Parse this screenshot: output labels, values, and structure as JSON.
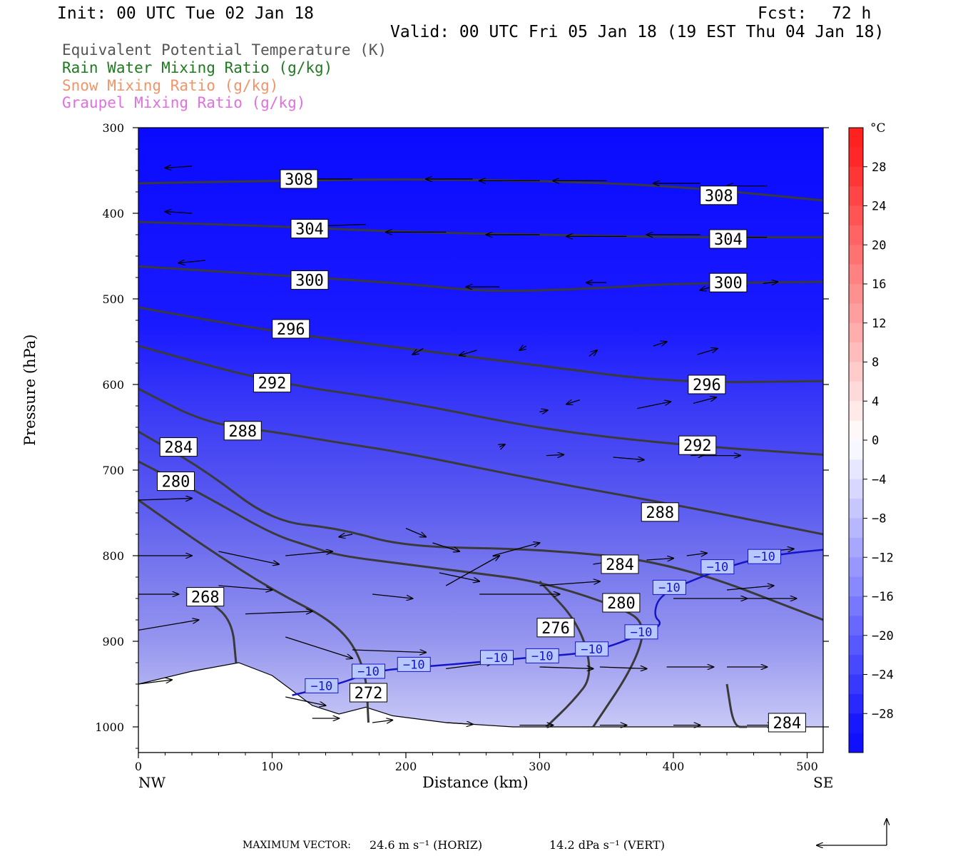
{
  "header": {
    "init": "Init: 00 UTC Tue 02 Jan 18",
    "fcst_label": "Fcst:",
    "fcst_value": "72 h",
    "valid": "Valid: 00 UTC Fri 05 Jan 18 (19 EST Thu 04 Jan 18)"
  },
  "fields": [
    {
      "label": "Equivalent Potential Temperature (K)",
      "color": "#555555"
    },
    {
      "label": "Rain Water Mixing Ratio (g/kg)",
      "color": "#1f7a1f"
    },
    {
      "label": "Snow Mixing Ratio (g/kg)",
      "color": "#f0946a"
    },
    {
      "label": "Graupel Mixing Ratio (g/kg)",
      "color": "#e070e0"
    }
  ],
  "footer": {
    "max_vector_label": "MAXIMUM VECTOR:",
    "horiz": "24.6 m s⁻¹ (HORIZ)",
    "vert": "14.2 dPa s⁻¹ (VERT)"
  },
  "chart_data": {
    "type": "cross-section contour",
    "xlabel": "Distance (km)",
    "ylabel": "Pressure (hPa)",
    "x_ticks": [
      0,
      100,
      200,
      300,
      400,
      500
    ],
    "y_ticks": [
      300,
      400,
      500,
      600,
      700,
      800,
      900,
      1000
    ],
    "xlim": [
      0,
      512
    ],
    "ylim": [
      1030,
      300
    ],
    "x_end_labels": {
      "left": "NW",
      "right": "SE"
    },
    "colorbar": {
      "unit": "°C",
      "tick_labels": [
        "28",
        "24",
        "20",
        "16",
        "12",
        "8",
        "4",
        "0",
        "−4",
        "−8",
        "−12",
        "−16",
        "−20",
        "−24",
        "−28"
      ],
      "tick_values": [
        28,
        24,
        20,
        16,
        12,
        8,
        4,
        0,
        -4,
        -8,
        -12,
        -16,
        -20,
        -24,
        -28
      ],
      "levels": [
        32,
        30,
        28,
        26,
        24,
        22,
        20,
        18,
        16,
        14,
        12,
        10,
        8,
        6,
        4,
        2,
        0,
        -2,
        -4,
        -6,
        -8,
        -10,
        -12,
        -14,
        -16,
        -18,
        -20,
        -22,
        -24,
        -26,
        -28,
        -30,
        -32
      ],
      "warm_color": "#ff2020",
      "cold_color": "#1010ff"
    },
    "theta_e_contours": [
      {
        "value": 308,
        "labels": [
          {
            "x": 120,
            "p": 360
          },
          {
            "x": 434,
            "p": 379
          }
        ],
        "points": [
          [
            0,
            365
          ],
          [
            100,
            362
          ],
          [
            200,
            360
          ],
          [
            300,
            362
          ],
          [
            400,
            368
          ],
          [
            512,
            385
          ]
        ]
      },
      {
        "value": 304,
        "labels": [
          {
            "x": 128,
            "p": 418
          },
          {
            "x": 441,
            "p": 430
          }
        ],
        "points": [
          [
            0,
            410
          ],
          [
            100,
            415
          ],
          [
            200,
            422
          ],
          [
            300,
            425
          ],
          [
            400,
            428
          ],
          [
            512,
            428
          ]
        ]
      },
      {
        "value": 300,
        "labels": [
          {
            "x": 128,
            "p": 478
          },
          {
            "x": 441,
            "p": 481
          }
        ],
        "points": [
          [
            0,
            462
          ],
          [
            100,
            472
          ],
          [
            200,
            482
          ],
          [
            260,
            492
          ],
          [
            340,
            488
          ],
          [
            400,
            482
          ],
          [
            512,
            480
          ]
        ]
      },
      {
        "value": 296,
        "labels": [
          {
            "x": 114,
            "p": 535
          },
          {
            "x": 425,
            "p": 600
          }
        ],
        "points": [
          [
            0,
            510
          ],
          [
            100,
            538
          ],
          [
            200,
            558
          ],
          [
            300,
            578
          ],
          [
            400,
            598
          ],
          [
            512,
            596
          ]
        ]
      },
      {
        "value": 292,
        "labels": [
          {
            "x": 100,
            "p": 598
          },
          {
            "x": 418,
            "p": 671
          }
        ],
        "points": [
          [
            0,
            555
          ],
          [
            100,
            598
          ],
          [
            200,
            620
          ],
          [
            300,
            652
          ],
          [
            400,
            670
          ],
          [
            512,
            682
          ]
        ]
      },
      {
        "value": 288,
        "labels": [
          {
            "x": 78,
            "p": 654
          },
          {
            "x": 390,
            "p": 749
          }
        ],
        "points": [
          [
            0,
            605
          ],
          [
            50,
            645
          ],
          [
            100,
            655
          ],
          [
            150,
            668
          ],
          [
            200,
            680
          ],
          [
            300,
            712
          ],
          [
            400,
            740
          ],
          [
            512,
            775
          ]
        ]
      },
      {
        "value": 284,
        "labels": [
          {
            "x": 30,
            "p": 673
          },
          {
            "x": 360,
            "p": 810
          }
        ],
        "points": [
          [
            0,
            655
          ],
          [
            50,
            700
          ],
          [
            100,
            760
          ],
          [
            150,
            768
          ],
          [
            200,
            790
          ],
          [
            300,
            792
          ],
          [
            400,
            808
          ],
          [
            512,
            875
          ]
        ]
      },
      {
        "value": 280,
        "labels": [
          {
            "x": 28,
            "p": 713
          },
          {
            "x": 361,
            "p": 855
          }
        ],
        "points": [
          [
            0,
            690
          ],
          [
            50,
            730
          ],
          [
            100,
            775
          ],
          [
            130,
            790
          ],
          [
            150,
            800
          ],
          [
            200,
            810
          ],
          [
            250,
            820
          ],
          [
            300,
            830
          ],
          [
            360,
            860
          ],
          [
            380,
            880
          ],
          [
            370,
            930
          ],
          [
            340,
            1000
          ]
        ]
      },
      {
        "value": 276,
        "labels": [
          {
            "x": 312,
            "p": 884
          }
        ],
        "points": [
          [
            0,
            735
          ],
          [
            50,
            790
          ],
          [
            100,
            840
          ],
          [
            150,
            880
          ],
          [
            170,
            930
          ],
          [
            172,
            995
          ]
        ]
      },
      {
        "value": 272,
        "labels": [
          {
            "x": 172,
            "p": 960
          }
        ],
        "points": [
          [
            300,
            830
          ],
          [
            330,
            880
          ],
          [
            340,
            940
          ],
          [
            325,
            970
          ],
          [
            305,
            1000
          ]
        ]
      },
      {
        "value": 268,
        "labels": [
          {
            "x": 50,
            "p": 848
          }
        ],
        "points": [
          [
            50,
            850
          ],
          [
            70,
            875
          ],
          [
            73,
            925
          ]
        ]
      },
      {
        "value": 284,
        "labels": [
          {
            "x": 485,
            "p": 995
          }
        ],
        "points": [
          [
            440,
            950
          ],
          [
            445,
            1000
          ],
          [
            455,
            1000
          ]
        ]
      }
    ],
    "isotherm_minus10": {
      "value": -10,
      "labels": [
        {
          "x": 137,
          "p": 952
        },
        {
          "x": 172,
          "p": 935
        },
        {
          "x": 206,
          "p": 927
        },
        {
          "x": 268,
          "p": 919
        },
        {
          "x": 302,
          "p": 917
        },
        {
          "x": 339,
          "p": 909
        },
        {
          "x": 376,
          "p": 889
        },
        {
          "x": 397,
          "p": 837
        },
        {
          "x": 433,
          "p": 813
        },
        {
          "x": 468,
          "p": 801
        }
      ],
      "points": [
        [
          115,
          963
        ],
        [
          150,
          950
        ],
        [
          175,
          935
        ],
        [
          210,
          930
        ],
        [
          250,
          925
        ],
        [
          300,
          918
        ],
        [
          340,
          913
        ],
        [
          380,
          890
        ],
        [
          392,
          880
        ],
        [
          385,
          870
        ],
        [
          390,
          845
        ],
        [
          420,
          825
        ],
        [
          450,
          808
        ],
        [
          480,
          798
        ],
        [
          512,
          793
        ]
      ]
    },
    "surface_pressure": [
      [
        0,
        950
      ],
      [
        40,
        935
      ],
      [
        75,
        925
      ],
      [
        100,
        940
      ],
      [
        130,
        975
      ],
      [
        150,
        985
      ],
      [
        170,
        977
      ],
      [
        190,
        987
      ],
      [
        230,
        995
      ],
      [
        280,
        1000
      ],
      [
        512,
        1000
      ]
    ]
  }
}
